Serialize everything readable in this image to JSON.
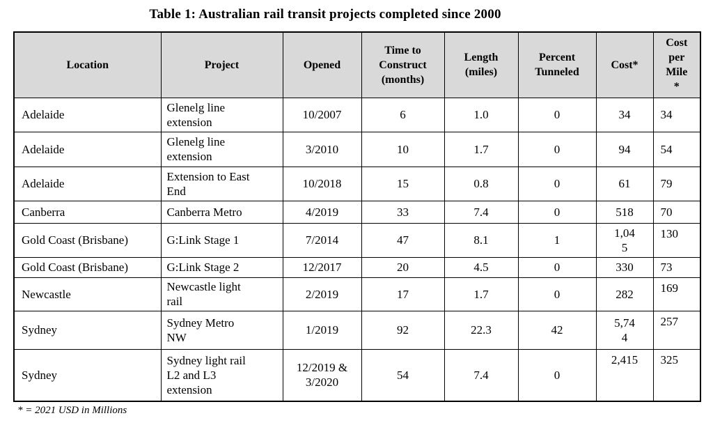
{
  "title": "Table 1: Australian rail transit projects completed since 2000",
  "footnote": "* = 2021 USD in Millions",
  "colors": {
    "header_bg": "#d9d9d9",
    "border": "#000000",
    "text": "#000000",
    "page_bg": "#ffffff"
  },
  "table": {
    "columns": {
      "location": "Location",
      "project": "Project",
      "opened": "Opened",
      "months": "Time to\nConstruct\n(months)",
      "miles": "Length\n(miles)",
      "tunneled": "Percent\nTunneled",
      "cost": "Cost*",
      "cost_per_mile": "Cost\nper\nMile\n*"
    },
    "rows": [
      {
        "location": "Adelaide",
        "project": "Glenelg line\nextension",
        "opened": "10/2007",
        "months": "6",
        "miles": "1.0",
        "tunneled": "0",
        "cost": "34",
        "cost_per_mile": "34"
      },
      {
        "location": "Adelaide",
        "project": "Glenelg line\nextension",
        "opened": "3/2010",
        "months": "10",
        "miles": "1.7",
        "tunneled": "0",
        "cost": "94",
        "cost_per_mile": "54"
      },
      {
        "location": "Adelaide",
        "project": "Extension to East\nEnd",
        "opened": "10/2018",
        "months": "15",
        "miles": "0.8",
        "tunneled": "0",
        "cost": "61",
        "cost_per_mile": "79"
      },
      {
        "location": "Canberra",
        "project": "Canberra Metro",
        "opened": "4/2019",
        "months": "33",
        "miles": "7.4",
        "tunneled": "0",
        "cost": "518",
        "cost_per_mile": "70"
      },
      {
        "location": "Gold Coast (Brisbane)",
        "project": "G:Link Stage 1",
        "opened": "7/2014",
        "months": "47",
        "miles": "8.1",
        "tunneled": "1",
        "cost": "1,04\n5",
        "cost_per_mile": "130"
      },
      {
        "location": "Gold Coast (Brisbane)",
        "project": "G:Link Stage 2",
        "opened": "12/2017",
        "months": "20",
        "miles": "4.5",
        "tunneled": "0",
        "cost": "330",
        "cost_per_mile": "73"
      },
      {
        "location": "Newcastle",
        "project": "Newcastle light\nrail",
        "opened": "2/2019",
        "months": "17",
        "miles": "1.7",
        "tunneled": "0",
        "cost": "282",
        "cost_per_mile": "169"
      },
      {
        "location": "Sydney",
        "project": "Sydney Metro\nNW",
        "opened": "1/2019",
        "months": "92",
        "miles": "22.3",
        "tunneled": "42",
        "cost": "5,74\n4",
        "cost_per_mile": "257"
      },
      {
        "location": "Sydney",
        "project": "Sydney light rail\nL2 and L3\nextension",
        "opened": "12/2019 &\n3/2020",
        "months": "54",
        "miles": "7.4",
        "tunneled": "0",
        "cost": "2,415",
        "cost_per_mile": "325"
      }
    ]
  }
}
